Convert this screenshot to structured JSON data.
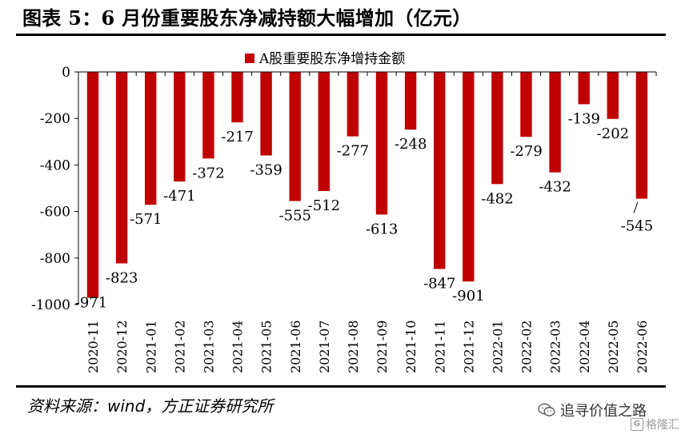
{
  "header": {
    "title": "图表 5：6 月份重要股东净减持额大幅增加（亿元）"
  },
  "footer": {
    "source": "资料来源：wind，方正证券研究所"
  },
  "watermarks": {
    "wechat": "追寻价值之路",
    "gelonghui": "格隆汇",
    "gelonghui_letter": "G"
  },
  "colors": {
    "bar": "#C00000",
    "axis": "#000000"
  },
  "chart_data": {
    "type": "bar",
    "title": "",
    "xlabel": "",
    "ylabel": "",
    "ylim": [
      -1000,
      0
    ],
    "yticks": [
      0,
      -200,
      -400,
      -600,
      -800,
      -1000
    ],
    "grid": false,
    "legend_position": "top-center",
    "categories": [
      "2020-11",
      "2020-12",
      "2021-01",
      "2021-02",
      "2021-03",
      "2021-04",
      "2021-05",
      "2021-06",
      "2021-07",
      "2021-08",
      "2021-09",
      "2021-10",
      "2021-11",
      "2021-12",
      "2022-01",
      "2022-02",
      "2022-03",
      "2022-04",
      "2022-05",
      "2022-06"
    ],
    "series": [
      {
        "name": "A股重要股东净增持金额",
        "values": [
          -971,
          -823,
          -571,
          -471,
          -372,
          -217,
          -359,
          -555,
          -512,
          -277,
          -613,
          -248,
          -847,
          -901,
          -482,
          -279,
          -432,
          -139,
          -202,
          -545
        ]
      }
    ]
  }
}
